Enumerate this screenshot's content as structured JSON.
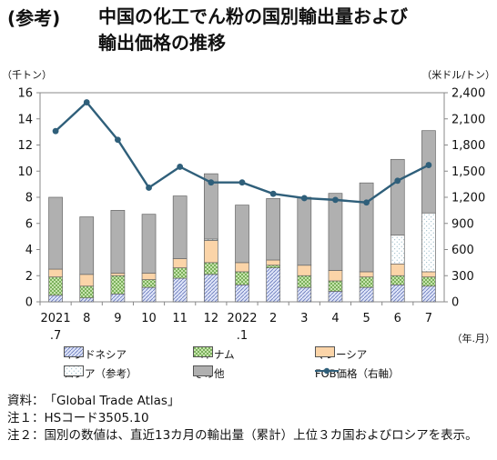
{
  "header": {
    "prefix": "(参考)",
    "title_line1": "中国の化工でん粉の国別輸出量および",
    "title_line2": "輸出価格の推移"
  },
  "chart_data": {
    "type": "bar",
    "left_unit": "（千トン）",
    "right_unit": "（米ドル/トン）",
    "x_unit": "（年.月）",
    "categories": [
      "2021\n.7",
      "8",
      "9",
      "10",
      "11",
      "12",
      "2022\n.1",
      "2",
      "3",
      "4",
      "5",
      "6",
      "7"
    ],
    "category_top": [
      "2021",
      "8",
      "9",
      "10",
      "11",
      "12",
      "2022",
      "2",
      "3",
      "4",
      "5",
      "6",
      "7"
    ],
    "category_bottom": [
      ".7",
      "",
      "",
      "",
      "",
      "",
      ".1",
      "",
      "",
      "",
      "",
      "",
      ""
    ],
    "ylim_left": [
      0,
      16
    ],
    "yticks_left": [
      "0",
      "2",
      "4",
      "6",
      "8",
      "10",
      "12",
      "14",
      "16"
    ],
    "ylim_right": [
      0,
      2400
    ],
    "yticks_right": [
      "0",
      "300",
      "600",
      "900",
      "1,200",
      "1,500",
      "1,800",
      "2,100",
      "2,400"
    ],
    "stacked": true,
    "series": [
      {
        "name": "インドネシア",
        "color": "#c9d3f0",
        "values": [
          0.5,
          0.3,
          0.6,
          1.1,
          1.8,
          2.1,
          1.3,
          2.6,
          1.1,
          0.8,
          1.1,
          1.3,
          1.2
        ]
      },
      {
        "name": "ベトナム",
        "color": "#c4e3a8",
        "values": [
          1.4,
          0.9,
          1.4,
          0.6,
          0.8,
          0.9,
          1.0,
          0.2,
          0.9,
          0.8,
          0.8,
          0.7,
          0.7
        ]
      },
      {
        "name": "マレーシア",
        "color": "#fbd4a8",
        "values": [
          0.6,
          0.9,
          0.2,
          0.5,
          0.7,
          1.7,
          0.7,
          0.4,
          0.8,
          0.8,
          0.4,
          0.9,
          0.4
        ]
      },
      {
        "name": "ロシア（参考）",
        "color": "#ffffff",
        "values": [
          0,
          0,
          0,
          0,
          0,
          0.1,
          0,
          0,
          0,
          0,
          0,
          2.2,
          4.5
        ]
      },
      {
        "name": "その他",
        "color": "#b0b0b0",
        "values": [
          5.5,
          4.4,
          4.8,
          4.5,
          4.8,
          5.0,
          4.4,
          4.7,
          5.2,
          5.9,
          6.8,
          5.8,
          6.3
        ]
      }
    ],
    "line": {
      "name": "FOB価格（右軸）",
      "color": "#2f5f7a",
      "values": [
        1960,
        2290,
        1860,
        1310,
        1550,
        1370,
        1370,
        1240,
        1190,
        1170,
        1140,
        1390,
        1570
      ]
    },
    "legend_position": "bottom"
  },
  "notes": [
    {
      "label": "資料：",
      "text": "「Global Trade Atlas」"
    },
    {
      "label": "注１：",
      "text": "HSコード3505.10"
    },
    {
      "label": "注２：",
      "text": "国別の数値は、直近13カ月の輸出量（累計）上位３カ国およびロシアを表示。"
    }
  ]
}
